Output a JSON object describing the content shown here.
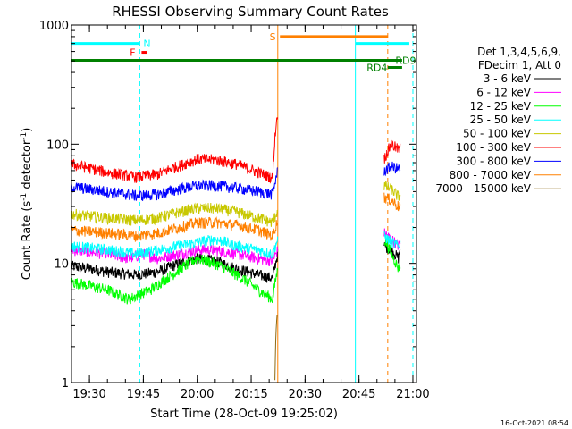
{
  "chart_data": {
    "type": "line",
    "title": "RHESSI Observing Summary Count Rates",
    "xlabel": "Start Time (28-Oct-09 19:25:02)",
    "ylabel_main": "Count Rate (s",
    "ylabel_sup1": "-1",
    "ylabel_mid": " detector",
    "ylabel_sup2": "-1",
    "ylabel_end": ")",
    "yscale": "log",
    "ylim": [
      1,
      1000
    ],
    "xlim_minutes": [
      0,
      96
    ],
    "x_ticks": [
      {
        "m": 5,
        "label": "19:30"
      },
      {
        "m": 20,
        "label": "19:45"
      },
      {
        "m": 35,
        "label": "20:00"
      },
      {
        "m": 50,
        "label": "20:15"
      },
      {
        "m": 65,
        "label": "20:30"
      },
      {
        "m": 80,
        "label": "20:45"
      },
      {
        "m": 95,
        "label": "21:00"
      }
    ],
    "y_ticks": [
      {
        "v": 1,
        "label": "1"
      },
      {
        "v": 10,
        "label": "10"
      },
      {
        "v": 100,
        "label": "100"
      },
      {
        "v": 1000,
        "label": "1000"
      }
    ],
    "legend_header": [
      "Det 1,3,4,5,6,9,",
      "FDecim 1, Att 0"
    ],
    "series": [
      {
        "name": "3 - 6 keV",
        "color": "#000000",
        "points": [
          [
            0,
            9.5
          ],
          [
            10,
            8.5
          ],
          [
            18,
            8
          ],
          [
            24,
            8.5
          ],
          [
            30,
            10
          ],
          [
            35,
            11
          ],
          [
            40,
            10.5
          ],
          [
            46,
            9
          ],
          [
            52,
            8
          ],
          [
            56,
            7.5
          ],
          [
            57.4,
            12
          ],
          [
            87,
            14
          ],
          [
            89,
            13
          ],
          [
            91,
            11
          ],
          [
            91.5,
            14
          ]
        ]
      },
      {
        "name": "6 - 12 keV",
        "color": "#ff00ff",
        "points": [
          [
            0,
            13
          ],
          [
            10,
            12
          ],
          [
            16,
            11
          ],
          [
            20,
            12
          ],
          [
            24,
            11
          ],
          [
            30,
            12
          ],
          [
            35,
            13
          ],
          [
            40,
            13
          ],
          [
            46,
            12
          ],
          [
            52,
            11
          ],
          [
            56,
            10.5
          ],
          [
            57.4,
            13
          ],
          [
            87,
            18
          ],
          [
            89,
            16
          ],
          [
            91,
            14
          ],
          [
            91.5,
            15
          ]
        ]
      },
      {
        "name": "12 - 25 keV",
        "color": "#00ff00",
        "points": [
          [
            0,
            7
          ],
          [
            10,
            6
          ],
          [
            16,
            5
          ],
          [
            22,
            6
          ],
          [
            28,
            8
          ],
          [
            35,
            11
          ],
          [
            40,
            10
          ],
          [
            46,
            8
          ],
          [
            52,
            6
          ],
          [
            56,
            5
          ],
          [
            57.4,
            9
          ],
          [
            87,
            16
          ],
          [
            89,
            12
          ],
          [
            91,
            9
          ],
          [
            91.5,
            10
          ]
        ]
      },
      {
        "name": "25 - 50 keV",
        "color": "#00ffff",
        "points": [
          [
            0,
            14
          ],
          [
            10,
            13
          ],
          [
            18,
            12
          ],
          [
            24,
            13
          ],
          [
            30,
            14
          ],
          [
            35,
            15
          ],
          [
            40,
            16
          ],
          [
            46,
            14
          ],
          [
            52,
            13
          ],
          [
            56,
            12
          ],
          [
            57.4,
            16
          ],
          [
            87,
            17
          ],
          [
            89,
            15
          ],
          [
            91,
            14
          ],
          [
            91.5,
            15
          ]
        ]
      },
      {
        "name": "50 - 100 keV",
        "color": "#c8c800",
        "points": [
          [
            0,
            26
          ],
          [
            10,
            24
          ],
          [
            18,
            23
          ],
          [
            24,
            24
          ],
          [
            30,
            27
          ],
          [
            35,
            29
          ],
          [
            40,
            29
          ],
          [
            46,
            27
          ],
          [
            52,
            24
          ],
          [
            56,
            22
          ],
          [
            57.4,
            28
          ],
          [
            87,
            45
          ],
          [
            89,
            42
          ],
          [
            91,
            36
          ],
          [
            91.5,
            38
          ]
        ]
      },
      {
        "name": "100 - 300 keV",
        "color": "#ff0000",
        "points": [
          [
            0,
            68
          ],
          [
            10,
            58
          ],
          [
            18,
            53
          ],
          [
            24,
            56
          ],
          [
            30,
            66
          ],
          [
            35,
            75
          ],
          [
            40,
            74
          ],
          [
            46,
            68
          ],
          [
            52,
            58
          ],
          [
            56,
            52
          ],
          [
            57.4,
            190
          ],
          [
            87,
            75
          ],
          [
            89,
            100
          ],
          [
            91,
            90
          ],
          [
            91.5,
            92
          ]
        ]
      },
      {
        "name": "300 - 800 keV",
        "color": "#0000ff",
        "points": [
          [
            0,
            44
          ],
          [
            10,
            40
          ],
          [
            18,
            37
          ],
          [
            24,
            38
          ],
          [
            30,
            42
          ],
          [
            35,
            45
          ],
          [
            40,
            45
          ],
          [
            46,
            43
          ],
          [
            52,
            40
          ],
          [
            56,
            38
          ],
          [
            57.4,
            60
          ],
          [
            87,
            60
          ],
          [
            89,
            65
          ],
          [
            91,
            62
          ],
          [
            91.5,
            63
          ]
        ]
      },
      {
        "name": "800 - 7000 keV",
        "color": "#ff8000",
        "points": [
          [
            0,
            19
          ],
          [
            10,
            18
          ],
          [
            18,
            17
          ],
          [
            24,
            18
          ],
          [
            30,
            20
          ],
          [
            35,
            22
          ],
          [
            40,
            22
          ],
          [
            46,
            21
          ],
          [
            52,
            19
          ],
          [
            56,
            17
          ],
          [
            57.4,
            23
          ],
          [
            87,
            36
          ],
          [
            89,
            34
          ],
          [
            91,
            30
          ],
          [
            91.5,
            31
          ]
        ]
      },
      {
        "name": "7000 - 15000 keV",
        "color": "#8b6914",
        "points": [
          [
            56.6,
            1.05
          ],
          [
            57,
            3
          ],
          [
            57.3,
            4
          ]
        ]
      }
    ],
    "annotations": [
      {
        "label": "N",
        "color": "#00ffff",
        "y": 700,
        "x_start": 0,
        "x_end": 19,
        "label_at": 21
      },
      {
        "label": "F",
        "color": "#ff0000",
        "y": 590,
        "x_start": 19.5,
        "x_end": 21,
        "label_at": 17
      },
      {
        "label": "S",
        "color": "#ff8000",
        "y": 800,
        "x_start": 58,
        "x_end": 88,
        "label_at": 56
      },
      {
        "label": "",
        "color": "#00ffff",
        "y": 700,
        "x_start": 79,
        "x_end": 94,
        "label_at": null
      },
      {
        "label": "RD9",
        "color": "#008000",
        "y": 505,
        "x_start": 0,
        "x_end": 92,
        "label_at": 93
      },
      {
        "label": "RD4",
        "color": "#008000",
        "y": 440,
        "x_start": 88,
        "x_end": 92,
        "label_at": 85
      }
    ],
    "vlines": [
      {
        "m": 0,
        "color": "#00ffff",
        "dashed": false
      },
      {
        "m": 19,
        "color": "#00ffff",
        "dashed": true
      },
      {
        "m": 57.4,
        "color": "#ff8000",
        "dashed": false
      },
      {
        "m": 79,
        "color": "#00ffff",
        "dashed": false
      },
      {
        "m": 88,
        "color": "#ff8000",
        "dashed": true
      },
      {
        "m": 95,
        "color": "#00ffff",
        "dashed": true
      }
    ],
    "grid": false,
    "legend_placement": "right"
  },
  "footer_timestamp": "16-Oct-2021 08:54"
}
